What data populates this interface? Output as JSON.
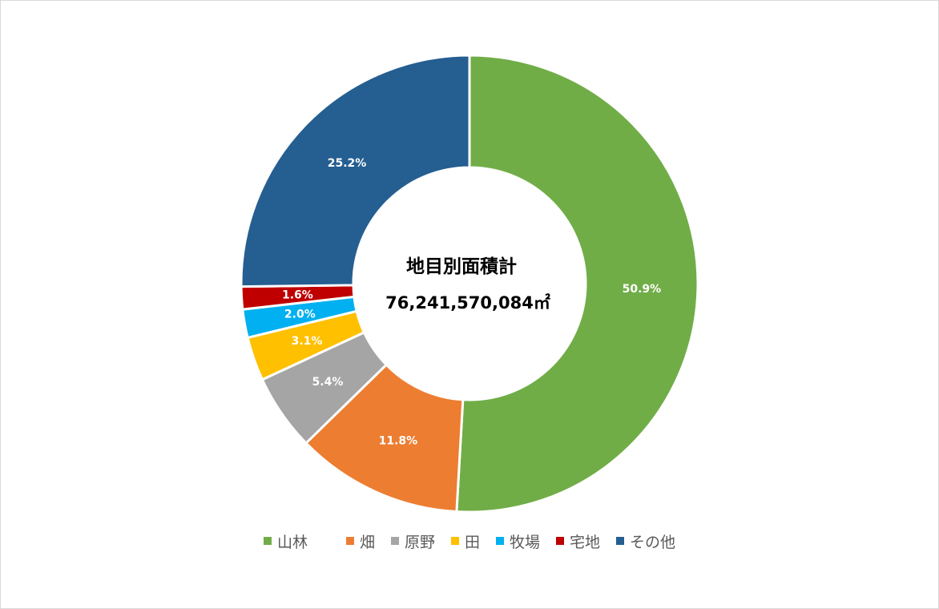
{
  "chart_data": {
    "type": "pie",
    "variant": "donut",
    "start_angle": "12 o'clock, clockwise",
    "center_title": "地目別面積計",
    "center_value": "76,241,570,084㎡",
    "legend_position": "bottom",
    "series": [
      {
        "name": "山林",
        "value": 50.9,
        "label": "50.9%",
        "color": "#70AD47"
      },
      {
        "name": "畑",
        "value": 11.8,
        "label": "11.8%",
        "color": "#ED7D31"
      },
      {
        "name": "原野",
        "value": 5.4,
        "label": "5.4%",
        "color": "#A5A5A5"
      },
      {
        "name": "田",
        "value": 3.1,
        "label": "3.1%",
        "color": "#FFC000"
      },
      {
        "name": "牧場",
        "value": 2.0,
        "label": "2.0%",
        "color": "#00B0F0"
      },
      {
        "name": "宅地",
        "value": 1.6,
        "label": "1.6%",
        "color": "#C00000"
      },
      {
        "name": "その他",
        "value": 25.2,
        "label": "25.2%",
        "color": "#255E91"
      }
    ]
  }
}
